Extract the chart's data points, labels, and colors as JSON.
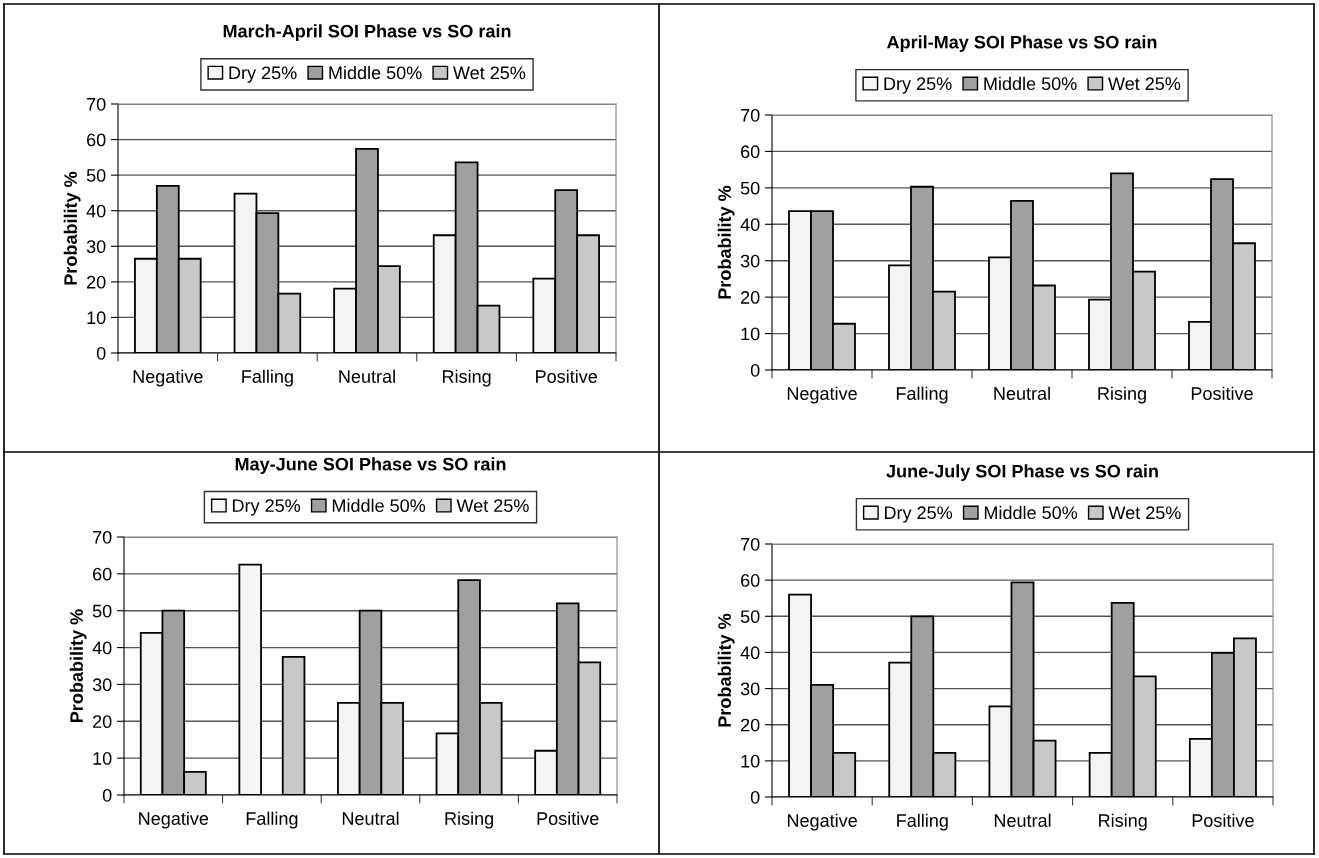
{
  "chart_data": [
    {
      "type": "bar",
      "title": "March-April SOI Phase vs SO rain",
      "ylabel": "Probability %",
      "categories": [
        "Negative",
        "Falling",
        "Neutral",
        "Rising",
        "Positive"
      ],
      "ylim": [
        0,
        70
      ],
      "yticks": [
        0,
        10,
        20,
        30,
        40,
        50,
        60,
        70
      ],
      "grid": "y",
      "legend": "top",
      "series": [
        {
          "name": "Dry 25%",
          "color": "#f4f4f4",
          "values": [
            26.5,
            44.8,
            18.1,
            33.1,
            20.9
          ]
        },
        {
          "name": "Middle 50%",
          "color": "#a0a0a0",
          "values": [
            47,
            39.3,
            57.4,
            53.6,
            45.8
          ]
        },
        {
          "name": "Wet 25%",
          "color": "#c8c8c8",
          "values": [
            26.5,
            16.7,
            24.4,
            13.3,
            33.1
          ]
        }
      ]
    },
    {
      "type": "bar",
      "title": "April-May SOI Phase vs SO rain",
      "ylabel": "Probability %",
      "categories": [
        "Negative",
        "Falling",
        "Neutral",
        "Rising",
        "Positive"
      ],
      "ylim": [
        0,
        70
      ],
      "yticks": [
        0,
        10,
        20,
        30,
        40,
        50,
        60,
        70
      ],
      "grid": "y",
      "legend": "top",
      "series": [
        {
          "name": "Dry 25%",
          "color": "#f4f4f4",
          "values": [
            43.6,
            28.7,
            30.9,
            19.3,
            13.2
          ]
        },
        {
          "name": "Middle 50%",
          "color": "#a0a0a0",
          "values": [
            43.6,
            50.3,
            46.4,
            54,
            52.4
          ]
        },
        {
          "name": "Wet 25%",
          "color": "#c8c8c8",
          "values": [
            12.7,
            21.5,
            23.2,
            27,
            34.8
          ]
        }
      ]
    },
    {
      "type": "bar",
      "title": "May-June SOI Phase vs SO rain",
      "ylabel": "Probability %",
      "categories": [
        "Negative",
        "Falling",
        "Neutral",
        "Rising",
        "Positive"
      ],
      "ylim": [
        0,
        70
      ],
      "yticks": [
        0,
        10,
        20,
        30,
        40,
        50,
        60,
        70
      ],
      "grid": "y",
      "legend": "top",
      "series": [
        {
          "name": "Dry 25%",
          "color": "#f4f4f4",
          "values": [
            44,
            62.5,
            25,
            16.7,
            12
          ]
        },
        {
          "name": "Middle 50%",
          "color": "#a0a0a0",
          "values": [
            50,
            null,
            50,
            58.3,
            52
          ]
        },
        {
          "name": "Wet 25%",
          "color": "#c8c8c8",
          "values": [
            6.3,
            37.5,
            25,
            25,
            36
          ]
        }
      ]
    },
    {
      "type": "bar",
      "title": "June-July SOI Phase vs SO rain",
      "ylabel": "Probability %",
      "categories": [
        "Negative",
        "Falling",
        "Neutral",
        "Rising",
        "Positive"
      ],
      "ylim": [
        0,
        70
      ],
      "yticks": [
        0,
        10,
        20,
        30,
        40,
        50,
        60,
        70
      ],
      "grid": "y",
      "legend": "top",
      "series": [
        {
          "name": "Dry 25%",
          "color": "#f4f4f4",
          "values": [
            56,
            37.2,
            25.1,
            12.2,
            16.1
          ]
        },
        {
          "name": "Middle 50%",
          "color": "#a0a0a0",
          "values": [
            31,
            50,
            59.4,
            53.7,
            39.9
          ]
        },
        {
          "name": "Wet 25%",
          "color": "#c8c8c8",
          "values": [
            12.2,
            12.2,
            15.6,
            33.4,
            43.9
          ]
        }
      ]
    }
  ]
}
